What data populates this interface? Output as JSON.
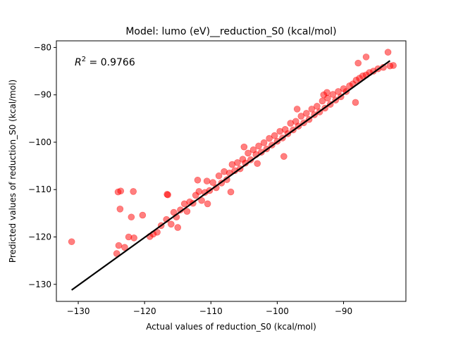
{
  "chart_data": {
    "type": "scatter",
    "title": "Model: lumo (eV)__reduction_S0 (kcal/mol)",
    "xlabel": "Actual values of reduction_S0 (kcal/mol)",
    "ylabel": "Predicted values of reduction_S0 (kcal/mol)",
    "xlim": [
      -133.3,
      -80.6
    ],
    "ylim": [
      -133.6,
      -78.6
    ],
    "xticks": [
      -130,
      -120,
      -110,
      -100,
      -90
    ],
    "yticks": [
      -130,
      -120,
      -110,
      -100,
      -90,
      -80
    ],
    "xtick_labels": [
      "−130",
      "−120",
      "−110",
      "−100",
      "−90"
    ],
    "ytick_labels": [
      "−130",
      "−120",
      "−110",
      "−100",
      "−90",
      "−80"
    ],
    "annotation": {
      "prefix": "R",
      "sup": "2",
      "text": " = 0.9766"
    },
    "grid": false,
    "marker_color": "#ff0000",
    "marker_alpha": 0.5,
    "fit_line": {
      "color": "#000000",
      "x": [
        -131.0,
        -83.0
      ],
      "y": [
        -131.2,
        -82.8
      ]
    },
    "series": [
      {
        "points": [
          [
            -131.0,
            -121.0
          ],
          [
            -124.0,
            -110.5
          ],
          [
            -123.6,
            -110.3
          ],
          [
            -123.7,
            -114.1
          ],
          [
            -122.0,
            -115.8
          ],
          [
            -121.7,
            -110.4
          ],
          [
            -120.3,
            -115.4
          ],
          [
            -116.6,
            -111.0
          ],
          [
            -116.5,
            -111.1
          ],
          [
            -124.2,
            -123.5
          ],
          [
            -123.9,
            -121.8
          ],
          [
            -123.0,
            -122.2
          ],
          [
            -122.4,
            -120.0
          ],
          [
            -121.6,
            -120.2
          ],
          [
            -119.2,
            -119.9
          ],
          [
            -118.7,
            -119.4
          ],
          [
            -118.1,
            -119.0
          ],
          [
            -117.5,
            -117.6
          ],
          [
            -116.7,
            -116.3
          ],
          [
            -116.0,
            -117.3
          ],
          [
            -115.6,
            -114.8
          ],
          [
            -115.2,
            -115.8
          ],
          [
            -114.6,
            -114.3
          ],
          [
            -114.0,
            -113.0
          ],
          [
            -113.6,
            -114.6
          ],
          [
            -113.2,
            -112.6
          ],
          [
            -112.7,
            -112.9
          ],
          [
            -112.3,
            -111.2
          ],
          [
            -111.8,
            -110.4
          ],
          [
            -111.4,
            -112.3
          ],
          [
            -110.9,
            -110.6
          ],
          [
            -110.6,
            -108.2
          ],
          [
            -110.2,
            -110.2
          ],
          [
            -109.7,
            -108.5
          ],
          [
            -109.2,
            -109.6
          ],
          [
            -108.8,
            -107.1
          ],
          [
            -108.4,
            -108.6
          ],
          [
            -108.0,
            -106.2
          ],
          [
            -107.6,
            -107.9
          ],
          [
            -107.2,
            -106.5
          ],
          [
            -106.8,
            -104.7
          ],
          [
            -106.4,
            -106.0
          ],
          [
            -106.0,
            -104.3
          ],
          [
            -105.6,
            -105.6
          ],
          [
            -105.2,
            -103.6
          ],
          [
            -104.8,
            -104.4
          ],
          [
            -104.4,
            -102.3
          ],
          [
            -104.0,
            -103.7
          ],
          [
            -103.6,
            -101.6
          ],
          [
            -103.2,
            -102.6
          ],
          [
            -102.8,
            -100.8
          ],
          [
            -102.4,
            -102.1
          ],
          [
            -102.0,
            -100.1
          ],
          [
            -101.6,
            -101.4
          ],
          [
            -101.2,
            -99.2
          ],
          [
            -100.8,
            -100.6
          ],
          [
            -100.4,
            -98.6
          ],
          [
            -100.0,
            -99.8
          ],
          [
            -99.6,
            -97.7
          ],
          [
            -99.2,
            -99.1
          ],
          [
            -98.8,
            -97.3
          ],
          [
            -98.4,
            -98.2
          ],
          [
            -98.0,
            -96.0
          ],
          [
            -97.6,
            -97.4
          ],
          [
            -97.2,
            -95.6
          ],
          [
            -96.8,
            -96.6
          ],
          [
            -96.4,
            -94.5
          ],
          [
            -96.0,
            -95.9
          ],
          [
            -95.6,
            -93.9
          ],
          [
            -95.2,
            -95.2
          ],
          [
            -94.8,
            -93.0
          ],
          [
            -94.4,
            -94.2
          ],
          [
            -94.0,
            -92.4
          ],
          [
            -93.6,
            -93.6
          ],
          [
            -93.2,
            -91.3
          ],
          [
            -92.8,
            -92.8
          ],
          [
            -92.4,
            -90.7
          ],
          [
            -92.0,
            -92.0
          ],
          [
            -91.6,
            -89.9
          ],
          [
            -91.2,
            -91.1
          ],
          [
            -90.8,
            -89.3
          ],
          [
            -90.4,
            -90.4
          ],
          [
            -90.0,
            -88.7
          ],
          [
            -89.6,
            -89.3
          ],
          [
            -89.1,
            -88.1
          ],
          [
            -88.6,
            -87.7
          ],
          [
            -88.1,
            -86.9
          ],
          [
            -87.6,
            -86.5
          ],
          [
            -87.1,
            -86.0
          ],
          [
            -86.6,
            -85.8
          ],
          [
            -86.1,
            -85.3
          ],
          [
            -85.5,
            -85.0
          ],
          [
            -84.8,
            -84.5
          ],
          [
            -84.0,
            -84.2
          ],
          [
            -83.0,
            -83.9
          ],
          [
            -82.5,
            -83.8
          ],
          [
            -83.3,
            -81.0
          ],
          [
            -86.6,
            -82.0
          ],
          [
            -87.8,
            -83.3
          ],
          [
            -93.0,
            -90.0
          ],
          [
            -88.2,
            -91.6
          ],
          [
            -99.0,
            -103.0
          ],
          [
            -103.0,
            -104.5
          ],
          [
            -107.0,
            -110.5
          ],
          [
            -110.5,
            -113.0
          ],
          [
            -112.0,
            -108.0
          ],
          [
            -105.0,
            -101.0
          ],
          [
            -97.0,
            -93.0
          ],
          [
            -92.5,
            -89.5
          ],
          [
            -115.0,
            -118.0
          ]
        ]
      }
    ]
  }
}
